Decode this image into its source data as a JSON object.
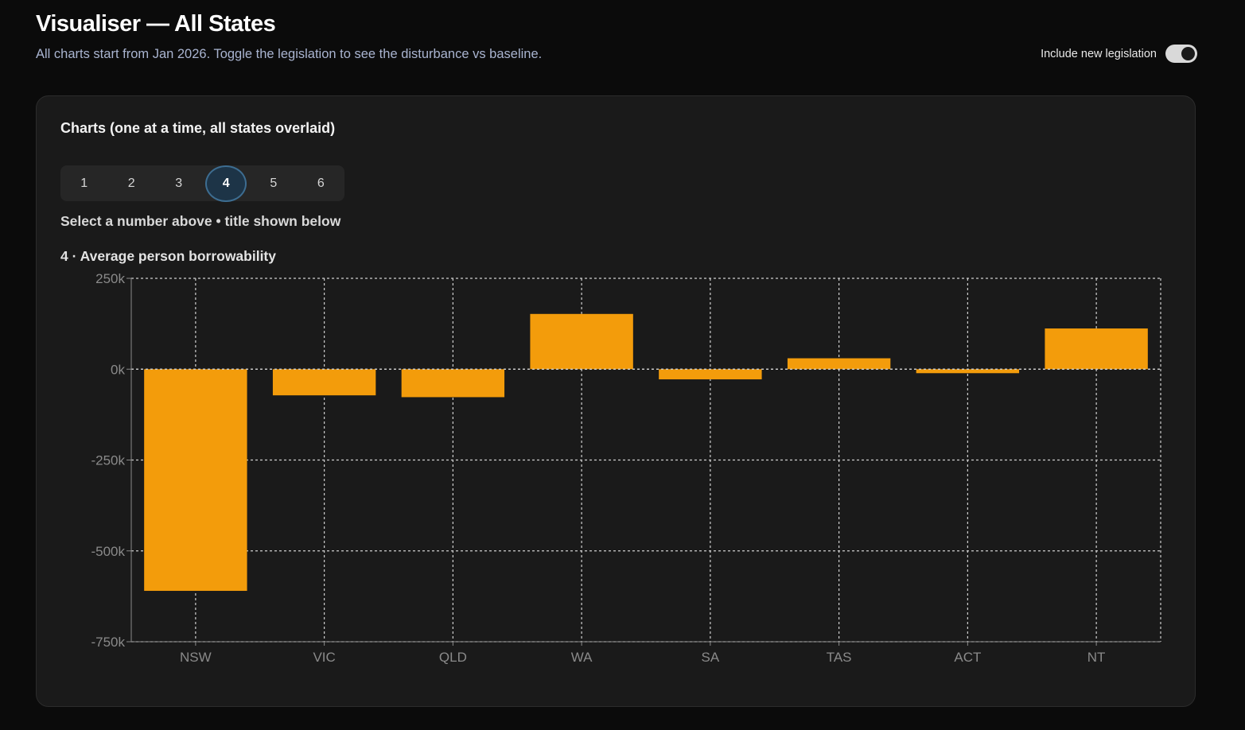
{
  "header": {
    "title": "Visualiser — All States",
    "subtitle": "All charts start from Jan 2026. Toggle the legislation to see the disturbance vs baseline.",
    "toggle_label": "Include new legislation",
    "toggle_on": true
  },
  "panel": {
    "title": "Charts (one at a time, all states overlaid)",
    "tabs": [
      "1",
      "2",
      "3",
      "4",
      "5",
      "6"
    ],
    "active_tab": "4",
    "hint": "Select a number above • title shown below",
    "chart_title": "4 · Average person borrowability"
  },
  "colors": {
    "bar": "#f39c0b",
    "background": "#0b0b0b",
    "panel": "#1a1a1a",
    "grid": "#cfcfcf",
    "active_tab": "#1d3447"
  },
  "chart_data": {
    "type": "bar",
    "title": "4 · Average person borrowability",
    "categories": [
      "NSW",
      "VIC",
      "QLD",
      "WA",
      "SA",
      "TAS",
      "ACT",
      "NT"
    ],
    "values": [
      -610000,
      -72000,
      -77000,
      152000,
      -28000,
      30000,
      -11000,
      112000
    ],
    "ylim": [
      -750000,
      250000
    ],
    "yticks": [
      250000,
      0,
      -250000,
      -500000,
      -750000
    ],
    "ytick_labels": [
      "250k",
      "0k",
      "-250k",
      "-500k",
      "-750k"
    ],
    "grid": true,
    "xlabel": "",
    "ylabel": ""
  }
}
